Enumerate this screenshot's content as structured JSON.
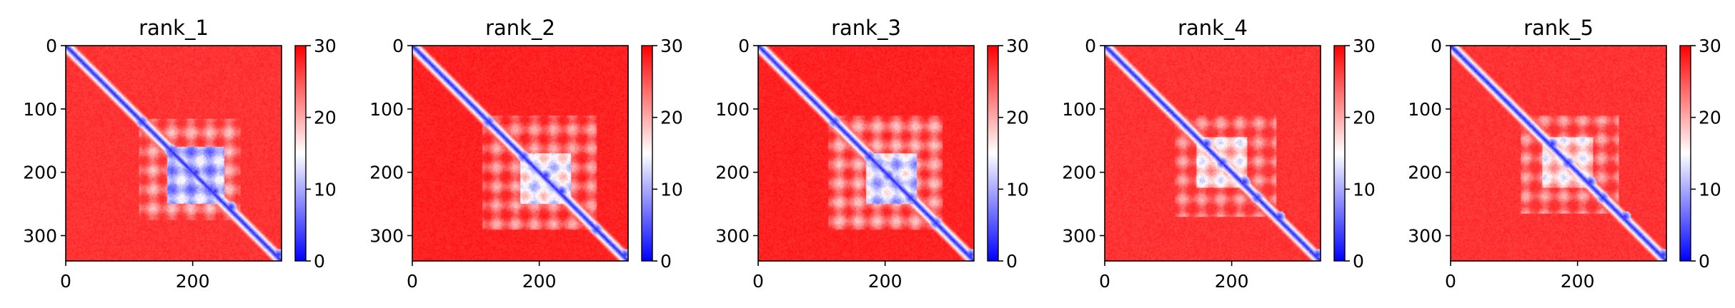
{
  "chart_data": [
    {
      "type": "heatmap",
      "title": "rank_1",
      "xlabel": "",
      "ylabel": "",
      "xlim": [
        0,
        340
      ],
      "ylim": [
        340,
        0
      ],
      "x_ticks": [
        "0",
        "200"
      ],
      "x_tick_values": [
        0,
        200
      ],
      "y_ticks": [
        "0",
        "100",
        "200",
        "300"
      ],
      "y_tick_values": [
        0,
        100,
        200,
        300
      ],
      "matrix_size": 340,
      "colorbar": {
        "ticks": [
          "0",
          "10",
          "20",
          "30"
        ],
        "tick_values": [
          0,
          10,
          20,
          30
        ],
        "range": [
          0,
          30
        ],
        "colormap": "bwr"
      },
      "value_model": {
        "background": 28,
        "diagonal_value": 1,
        "blocks": [
          {
            "start": 115,
            "end": 275,
            "value": 22
          },
          {
            "start": 160,
            "end": 250,
            "value": 9
          }
        ],
        "hotspots": [
          [
            120,
            120
          ],
          [
            165,
            165
          ],
          [
            200,
            205
          ],
          [
            230,
            235
          ],
          [
            255,
            260
          ],
          [
            330,
            335
          ]
        ]
      }
    },
    {
      "type": "heatmap",
      "title": "rank_2",
      "xlabel": "",
      "ylabel": "",
      "xlim": [
        0,
        340
      ],
      "ylim": [
        340,
        0
      ],
      "x_ticks": [
        "0",
        "200"
      ],
      "x_tick_values": [
        0,
        200
      ],
      "y_ticks": [
        "0",
        "100",
        "200",
        "300"
      ],
      "y_tick_values": [
        0,
        100,
        200,
        300
      ],
      "matrix_size": 340,
      "colorbar": {
        "ticks": [
          "0",
          "10",
          "20",
          "30"
        ],
        "tick_values": [
          0,
          10,
          20,
          30
        ],
        "range": [
          0,
          30
        ],
        "colormap": "bwr"
      },
      "value_model": {
        "background": 29,
        "diagonal_value": 1,
        "blocks": [
          {
            "start": 110,
            "end": 290,
            "value": 23
          },
          {
            "start": 170,
            "end": 250,
            "value": 13
          }
        ],
        "hotspots": [
          [
            120,
            120
          ],
          [
            175,
            175
          ],
          [
            205,
            210
          ],
          [
            230,
            235
          ],
          [
            290,
            290
          ],
          [
            330,
            335
          ]
        ]
      }
    },
    {
      "type": "heatmap",
      "title": "rank_3",
      "xlabel": "",
      "ylabel": "",
      "xlim": [
        0,
        340
      ],
      "ylim": [
        340,
        0
      ],
      "x_ticks": [
        "0",
        "200"
      ],
      "x_tick_values": [
        0,
        200
      ],
      "y_ticks": [
        "0",
        "100",
        "200",
        "300"
      ],
      "y_tick_values": [
        0,
        100,
        200,
        300
      ],
      "matrix_size": 340,
      "colorbar": {
        "ticks": [
          "0",
          "10",
          "20",
          "30"
        ],
        "tick_values": [
          0,
          10,
          20,
          30
        ],
        "range": [
          0,
          30
        ],
        "colormap": "bwr"
      },
      "value_model": {
        "background": 29,
        "diagonal_value": 1,
        "blocks": [
          {
            "start": 110,
            "end": 290,
            "value": 22
          },
          {
            "start": 170,
            "end": 250,
            "value": 11
          }
        ],
        "hotspots": [
          [
            120,
            120
          ],
          [
            175,
            175
          ],
          [
            205,
            205
          ],
          [
            240,
            240
          ],
          [
            280,
            280
          ],
          [
            330,
            335
          ]
        ]
      }
    },
    {
      "type": "heatmap",
      "title": "rank_4",
      "xlabel": "",
      "ylabel": "",
      "xlim": [
        0,
        340
      ],
      "ylim": [
        340,
        0
      ],
      "x_ticks": [
        "0",
        "200"
      ],
      "x_tick_values": [
        0,
        200
      ],
      "y_ticks": [
        "0",
        "100",
        "200",
        "300"
      ],
      "y_tick_values": [
        0,
        100,
        200,
        300
      ],
      "matrix_size": 340,
      "colorbar": {
        "ticks": [
          "0",
          "10",
          "20",
          "30"
        ],
        "tick_values": [
          0,
          10,
          20,
          30
        ],
        "range": [
          0,
          30
        ],
        "colormap": "bwr"
      },
      "value_model": {
        "background": 28,
        "diagonal_value": 1,
        "blocks": [
          {
            "start": 110,
            "end": 270,
            "value": 23
          },
          {
            "start": 145,
            "end": 225,
            "value": 16
          }
        ],
        "hotspots": [
          [
            155,
            160
          ],
          [
            185,
            185
          ],
          [
            215,
            220
          ],
          [
            240,
            240
          ],
          [
            270,
            275
          ],
          [
            330,
            335
          ]
        ]
      }
    },
    {
      "type": "heatmap",
      "title": "rank_5",
      "xlabel": "",
      "ylabel": "",
      "xlim": [
        0,
        340
      ],
      "ylim": [
        340,
        0
      ],
      "x_ticks": [
        "0",
        "200"
      ],
      "x_tick_values": [
        0,
        200
      ],
      "y_ticks": [
        "0",
        "100",
        "200",
        "300"
      ],
      "y_tick_values": [
        0,
        100,
        200,
        300
      ],
      "matrix_size": 340,
      "colorbar": {
        "ticks": [
          "0",
          "10",
          "20",
          "30"
        ],
        "tick_values": [
          0,
          10,
          20,
          30
        ],
        "range": [
          0,
          30
        ],
        "colormap": "bwr"
      },
      "value_model": {
        "background": 28,
        "diagonal_value": 1,
        "blocks": [
          {
            "start": 110,
            "end": 265,
            "value": 23
          },
          {
            "start": 145,
            "end": 225,
            "value": 16
          }
        ],
        "hotspots": [
          [
            155,
            160
          ],
          [
            185,
            185
          ],
          [
            215,
            220
          ],
          [
            240,
            240
          ],
          [
            270,
            275
          ],
          [
            330,
            335
          ]
        ]
      }
    }
  ]
}
